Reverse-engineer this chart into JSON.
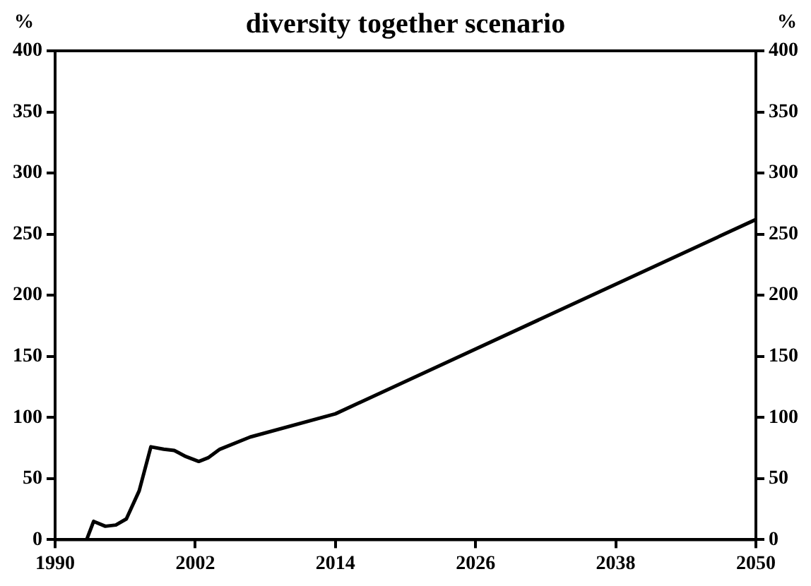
{
  "chart_data": {
    "type": "line",
    "title": "diversity together scenario",
    "ylabel": "%",
    "y2label": "%",
    "x": [
      1992.7,
      1993.3,
      1994.3,
      1995.2,
      1996.1,
      1997.2,
      1998.2,
      1999.3,
      2000.2,
      2001.2,
      2002.3,
      2003.1,
      2004.1,
      2006.7,
      2014,
      2050
    ],
    "series": [
      {
        "color": "#000000",
        "values": [
          0,
          15,
          11,
          12,
          17,
          40,
          76,
          74,
          73,
          68,
          64,
          67,
          74,
          84,
          103,
          262
        ]
      }
    ],
    "xlim": [
      1990,
      2050
    ],
    "xticks": [
      1990,
      2002,
      2014,
      2026,
      2038,
      2050
    ],
    "ylim": [
      0,
      400
    ],
    "yticks": [
      0,
      50,
      100,
      150,
      200,
      250,
      300,
      350,
      400
    ],
    "y2lim": [
      0,
      400
    ],
    "y2ticks": [
      0,
      50,
      100,
      150,
      200,
      250,
      300,
      350,
      400
    ],
    "grid": false,
    "legend": false,
    "marker": "none",
    "line_style": "solid"
  }
}
